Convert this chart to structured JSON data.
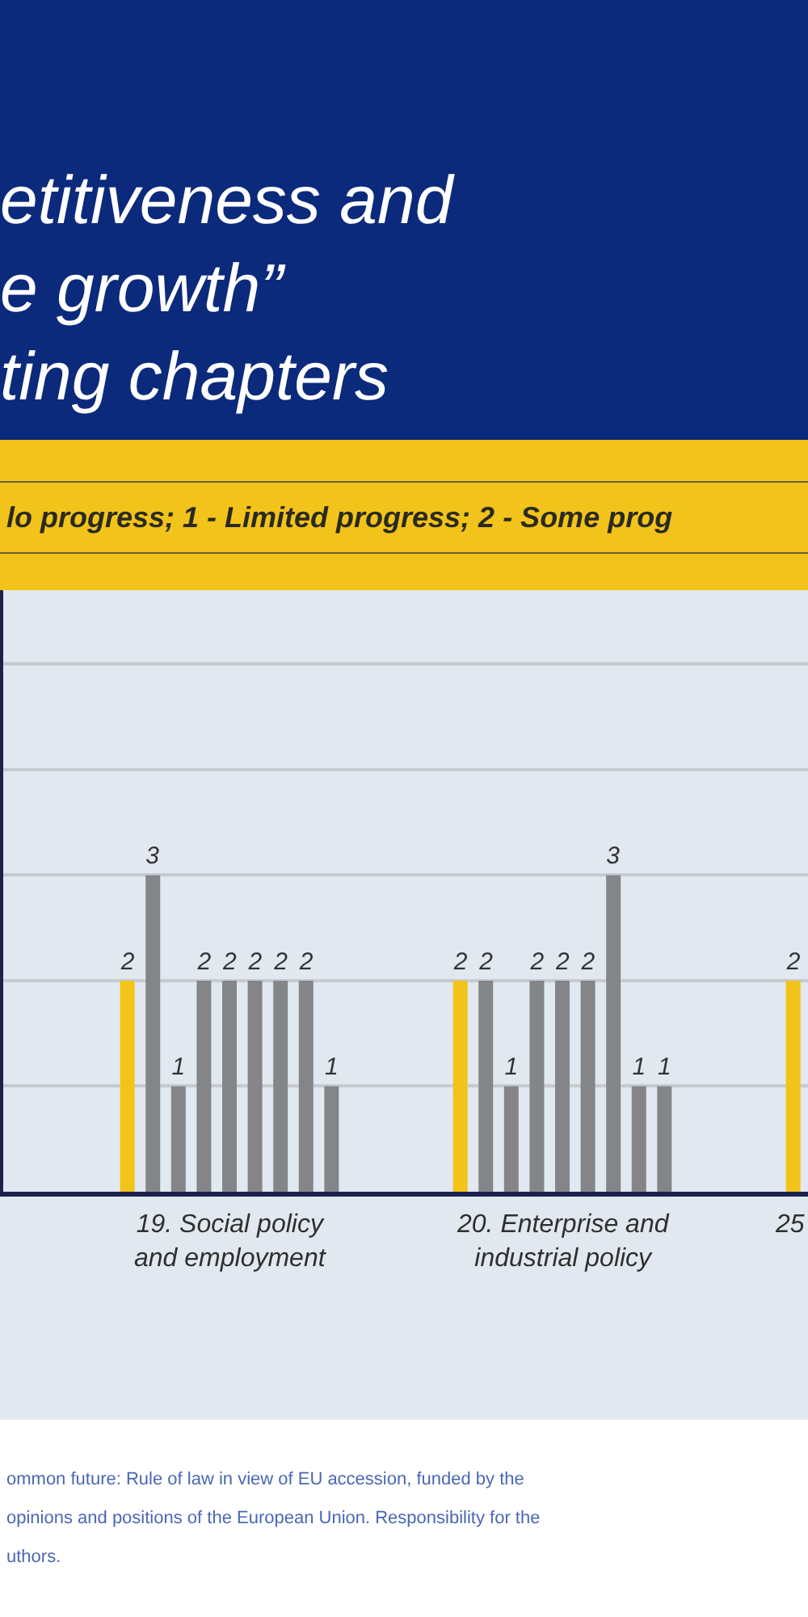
{
  "chart_data": {
    "type": "bar",
    "title": "etitiveness and\ne growth”\nting chapters",
    "subtitle": "lo progress; 1 - Limited progress; 2 - Some prog",
    "annotations": [
      "ommon future: Rule of law in view of EU accession, funded by the",
      "opinions and positions of the European Union. Responsibility for the",
      "uthors."
    ],
    "categories": [
      "19. Social policy\nand employment",
      "20. Enterprise and\nindustrial policy",
      "25"
    ],
    "series": [
      {
        "color": "#f2c318",
        "values": [
          2,
          2,
          2
        ]
      },
      {
        "color": "#848589",
        "values": [
          3,
          2,
          null
        ]
      },
      {
        "color": "#848589",
        "values": [
          1,
          1,
          null
        ]
      },
      {
        "color": "#848589",
        "values": [
          2,
          2,
          null
        ]
      },
      {
        "color": "#848589",
        "values": [
          2,
          2,
          null
        ]
      },
      {
        "color": "#848589",
        "values": [
          2,
          2,
          null
        ]
      },
      {
        "color": "#848589",
        "values": [
          2,
          3,
          null
        ]
      },
      {
        "color": "#848589",
        "values": [
          2,
          1,
          null
        ]
      },
      {
        "color": "#848589",
        "values": [
          1,
          1,
          null
        ]
      }
    ],
    "ylim": [
      0,
      5.7
    ],
    "yticks": [
      {
        "value": 1,
        "label": null
      },
      {
        "value": 2,
        "label": null
      },
      {
        "value": 3,
        "label": null
      },
      {
        "value": 4,
        "label": null
      },
      {
        "value": 5,
        "label": null
      }
    ],
    "grid": "y",
    "data_labels": true,
    "tick_labels": "x"
  }
}
